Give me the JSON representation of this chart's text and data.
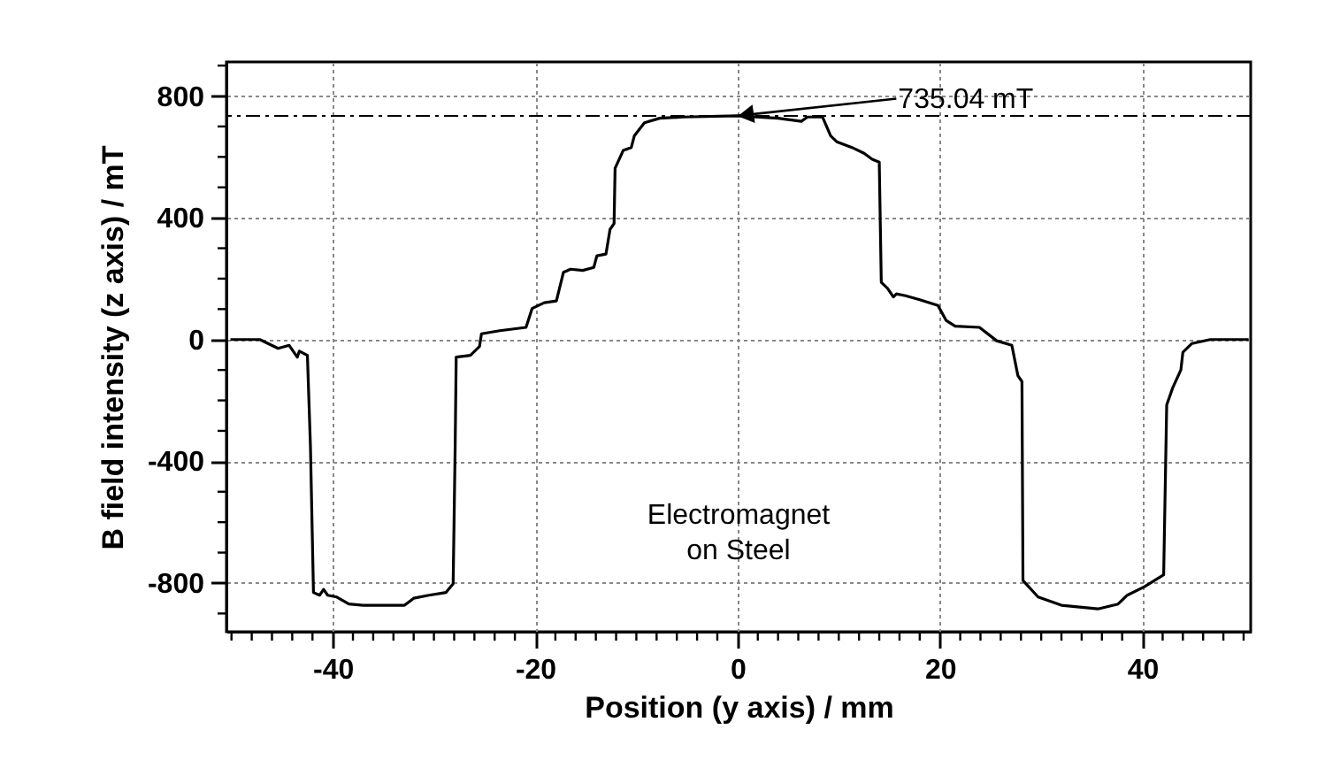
{
  "chart_data": {
    "type": "line",
    "xlabel": "Position (y axis) / mm",
    "ylabel": "B field intensity (z axis) / mT",
    "xlim": [
      -50.5,
      50.7
    ],
    "ylim": [
      -960,
      912
    ],
    "xticks": [
      {
        "value": -50,
        "label": null
      },
      {
        "value": -48,
        "label": null
      },
      {
        "value": -46,
        "label": null
      },
      {
        "value": -44,
        "label": null
      },
      {
        "value": -42,
        "label": null
      },
      -40,
      {
        "value": -38,
        "label": null
      },
      {
        "value": -36,
        "label": null
      },
      {
        "value": -34,
        "label": null
      },
      {
        "value": -32,
        "label": null
      },
      {
        "value": -30,
        "label": null
      },
      {
        "value": -28,
        "label": null
      },
      {
        "value": -26,
        "label": null
      },
      {
        "value": -24,
        "label": null
      },
      {
        "value": -22,
        "label": null
      },
      -20,
      {
        "value": -18,
        "label": null
      },
      {
        "value": -16,
        "label": null
      },
      {
        "value": -14,
        "label": null
      },
      {
        "value": -12,
        "label": null
      },
      {
        "value": -10,
        "label": null
      },
      {
        "value": -8,
        "label": null
      },
      {
        "value": -6,
        "label": null
      },
      {
        "value": -4,
        "label": null
      },
      {
        "value": -2,
        "label": null
      },
      0,
      {
        "value": 2,
        "label": null
      },
      {
        "value": 4,
        "label": null
      },
      {
        "value": 6,
        "label": null
      },
      {
        "value": 8,
        "label": null
      },
      {
        "value": 10,
        "label": null
      },
      {
        "value": 12,
        "label": null
      },
      {
        "value": 14,
        "label": null
      },
      {
        "value": 16,
        "label": null
      },
      {
        "value": 18,
        "label": null
      },
      20,
      {
        "value": 22,
        "label": null
      },
      {
        "value": 24,
        "label": null
      },
      {
        "value": 26,
        "label": null
      },
      {
        "value": 28,
        "label": null
      },
      {
        "value": 30,
        "label": null
      },
      {
        "value": 32,
        "label": null
      },
      {
        "value": 34,
        "label": null
      },
      {
        "value": 36,
        "label": null
      },
      {
        "value": 38,
        "label": null
      },
      40,
      {
        "value": 42,
        "label": null
      },
      {
        "value": 44,
        "label": null
      },
      {
        "value": 46,
        "label": null
      },
      {
        "value": 48,
        "label": null
      },
      {
        "value": 50,
        "label": null
      }
    ],
    "yticks": [
      {
        "value": -900,
        "label": null
      },
      -800,
      {
        "value": -700,
        "label": null
      },
      {
        "value": -600,
        "label": null
      },
      {
        "value": -500,
        "label": null
      },
      -400,
      {
        "value": -300,
        "label": null
      },
      {
        "value": -200,
        "label": null
      },
      {
        "value": -100,
        "label": null
      },
      0,
      {
        "value": 100,
        "label": null
      },
      {
        "value": 200,
        "label": null
      },
      {
        "value": 300,
        "label": null
      },
      400,
      {
        "value": 500,
        "label": null
      },
      {
        "value": 600,
        "label": null
      },
      {
        "value": 700,
        "label": null
      },
      800,
      {
        "value": 900,
        "label": null
      }
    ],
    "grid": true,
    "marker": "none",
    "line_style": "solid",
    "ref_lines": [
      {
        "axis": "y",
        "value": 735.04,
        "color": "#000000",
        "line_style": "dashed"
      }
    ],
    "annotations": [
      {
        "text": "735.04 mT",
        "x": 0,
        "y": 735.04
      },
      "Electromagnet\non Steel"
    ],
    "series": [
      {
        "color": "#000000",
        "x": [
          -50.1,
          -47.2,
          -45.4,
          -44.3,
          -43.5,
          -43.3,
          -42.5,
          -42.2,
          -41.9,
          -41.3,
          -40.9,
          -40.5,
          -39.6,
          -38.4,
          -37.0,
          -32.9,
          -32.0,
          -30.5,
          -28.8,
          -28.1,
          -27.9,
          -27.8,
          -26.4,
          -25.5,
          -25.3,
          -23.5,
          -20.9,
          -20.3,
          -19.1,
          -17.9,
          -17.2,
          -16.5,
          -15.3,
          -14.2,
          -13.9,
          -13.0,
          -12.6,
          -12.2,
          -12.1,
          -11.3,
          -10.5,
          -10.2,
          -9.2,
          -7.7,
          -5.4,
          0,
          4.0,
          6.3,
          6.9,
          8.4,
          9.2,
          9.8,
          11.3,
          12.5,
          13.3,
          14.0,
          14.2,
          14.8,
          15.4,
          15.7,
          16.6,
          18.0,
          19.8,
          20.6,
          21.5,
          23.9,
          25.6,
          27.1,
          27.7,
          28.1,
          28.2,
          29.7,
          32.0,
          35.6,
          37.6,
          38.5,
          40.2,
          42.1,
          42.4,
          43.0,
          43.8,
          44.0,
          44.9,
          46.7,
          50.5
        ],
        "values": [
          0,
          0,
          -29,
          -19,
          -58,
          -38,
          -52,
          -350,
          -831,
          -840,
          -821,
          -840,
          -846,
          -869,
          -873,
          -873,
          -850,
          -840,
          -831,
          -802,
          -350,
          -58,
          -52,
          -23,
          19,
          29,
          40,
          102,
          121,
          127,
          221,
          231,
          227,
          237,
          275,
          281,
          362,
          381,
          563,
          621,
          631,
          669,
          712,
          727,
          731,
          735,
          727,
          717,
          731,
          731,
          669,
          650,
          631,
          612,
          592,
          583,
          188,
          169,
          140,
          150,
          144,
          131,
          112,
          63,
          44,
          40,
          -4,
          -19,
          -119,
          -138,
          -792,
          -846,
          -873,
          -885,
          -869,
          -840,
          -812,
          -773,
          -215,
          -158,
          -100,
          -42,
          -13,
          0,
          0
        ]
      }
    ]
  }
}
